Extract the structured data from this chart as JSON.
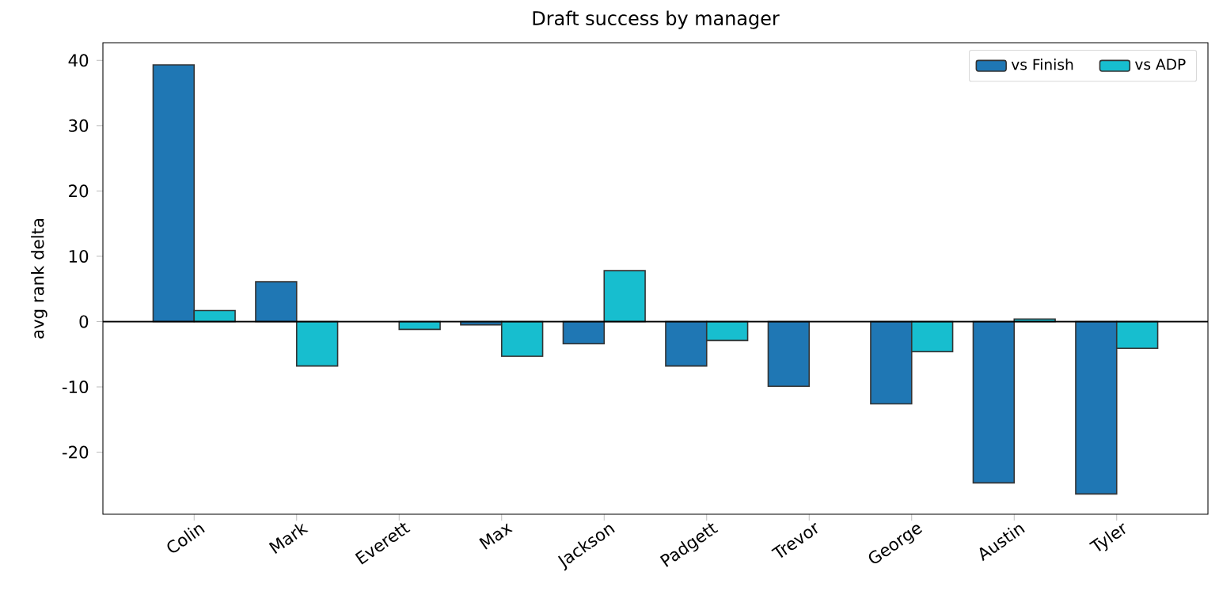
{
  "chart_data": {
    "type": "bar",
    "title": "Draft success by manager",
    "ylabel": "avg rank delta",
    "categories": [
      "Colin",
      "Mark",
      "Everett",
      "Max",
      "Jackson",
      "Padgett",
      "Trevor",
      "George",
      "Austin",
      "Tyler"
    ],
    "series": [
      {
        "name": "vs Finish",
        "color": "#1f77b4",
        "values": [
          39.3,
          6.1,
          0,
          -0.5,
          -3.4,
          -6.8,
          -9.9,
          -12.6,
          -24.7,
          -26.4
        ]
      },
      {
        "name": "vs ADP",
        "color": "#17becf",
        "values": [
          1.7,
          -6.8,
          -1.2,
          -5.3,
          7.8,
          -2.9,
          0,
          -4.6,
          0.4,
          -4.1
        ]
      }
    ],
    "ylim": [
      -29.5,
      42.7
    ],
    "yticks": [
      -20,
      -10,
      0,
      10,
      20,
      30,
      40
    ],
    "ref_lines": [
      {
        "axis": "y",
        "value": 0,
        "color": "#000000"
      }
    ],
    "legend": "top right",
    "grid": false
  }
}
